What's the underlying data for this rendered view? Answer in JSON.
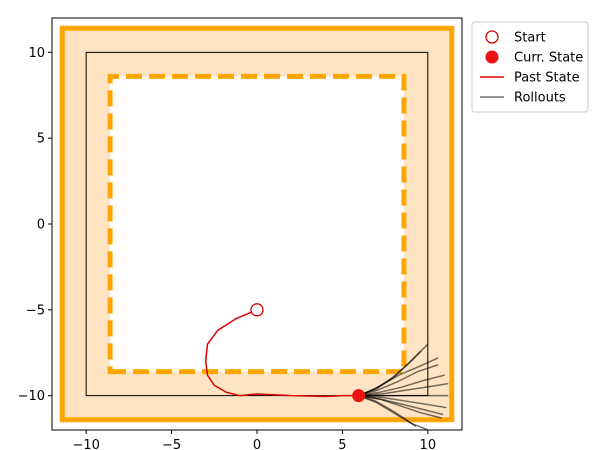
{
  "chart_data": {
    "type": "line",
    "xlim": [
      -12,
      12
    ],
    "ylim": [
      -12,
      12
    ],
    "xticks": [
      -10,
      -5,
      0,
      5,
      10
    ],
    "yticks": [
      -10,
      -5,
      0,
      5,
      10
    ],
    "xtick_labels": [
      "−10",
      "−5",
      "0",
      "5",
      "10"
    ],
    "ytick_labels": [
      "−10",
      "−5",
      "0",
      "5",
      "10"
    ],
    "grid": false,
    "legend_position": "outside-top-right",
    "colors": {
      "band_fill": "#ffe4c4",
      "boundary": "#ffa500",
      "reference": "#000000",
      "past_state": "#dd0000",
      "rollouts": "#000000",
      "marker": "#ee1111"
    },
    "regions": {
      "outer_boundary": [
        [
          -11.4,
          -11.4
        ],
        [
          11.4,
          -11.4
        ],
        [
          11.4,
          11.4
        ],
        [
          -11.4,
          11.4
        ]
      ],
      "inner_boundary": [
        [
          -8.6,
          -8.6
        ],
        [
          8.6,
          -8.6
        ],
        [
          8.6,
          8.6
        ],
        [
          -8.6,
          8.6
        ]
      ],
      "reference_square": [
        [
          -10,
          -10
        ],
        [
          10,
          -10
        ],
        [
          10,
          10
        ],
        [
          -10,
          10
        ]
      ]
    },
    "start": {
      "x": 0,
      "y": -5
    },
    "current_state": {
      "x": 5.95,
      "y": -10
    },
    "past_state": {
      "x": [
        0,
        -1.2,
        -2.3,
        -2.9,
        -3.0,
        -2.9,
        -2.5,
        -1.8,
        -1.0,
        0,
        1.0,
        2.0,
        3.0,
        4.0,
        5.0,
        5.95
      ],
      "y": [
        -5,
        -5.5,
        -6.2,
        -7.0,
        -8.0,
        -8.8,
        -9.4,
        -9.8,
        -10.0,
        -9.9,
        -9.95,
        -10.0,
        -10.02,
        -10.05,
        -10.0,
        -10.0
      ]
    },
    "rollouts": [
      {
        "x": [
          5.95,
          7.0,
          8.0,
          9.0,
          10.0
        ],
        "y": [
          -10,
          -9.6,
          -8.9,
          -8.0,
          -7.0
        ]
      },
      {
        "x": [
          5.95,
          7.0,
          8.2,
          9.4,
          10.6
        ],
        "y": [
          -10,
          -9.7,
          -9.2,
          -8.6,
          -8.2
        ]
      },
      {
        "x": [
          5.95,
          7.2,
          8.5,
          9.8,
          11.0
        ],
        "y": [
          -10,
          -9.8,
          -9.5,
          -9.1,
          -8.8
        ]
      },
      {
        "x": [
          5.95,
          7.3,
          8.6,
          9.9,
          11.2
        ],
        "y": [
          -10,
          -9.9,
          -9.7,
          -9.5,
          -9.3
        ]
      },
      {
        "x": [
          5.95,
          7.3,
          8.6,
          9.9,
          11.2
        ],
        "y": [
          -10,
          -10.0,
          -10.0,
          -10.0,
          -10.0
        ]
      },
      {
        "x": [
          5.95,
          7.3,
          8.6,
          9.9,
          11.1
        ],
        "y": [
          -10,
          -10.1,
          -10.3,
          -10.5,
          -10.7
        ]
      },
      {
        "x": [
          5.95,
          7.2,
          8.4,
          9.6,
          10.8
        ],
        "y": [
          -10,
          -10.2,
          -10.6,
          -11.0,
          -11.3
        ]
      },
      {
        "x": [
          5.95,
          7.0,
          8.0,
          9.0,
          10.0
        ],
        "y": [
          -10,
          -10.4,
          -11.0,
          -11.6,
          -12.0
        ]
      },
      {
        "x": [
          5.95,
          6.9,
          7.8,
          8.6,
          9.3
        ],
        "y": [
          -10,
          -10.3,
          -10.8,
          -11.3,
          -11.8
        ]
      },
      {
        "x": [
          5.95,
          6.9,
          7.9,
          8.8,
          9.6
        ],
        "y": [
          -10,
          -9.6,
          -9.0,
          -8.2,
          -7.4
        ]
      },
      {
        "x": [
          5.95,
          7.1,
          8.3,
          9.5,
          10.6
        ],
        "y": [
          -10,
          -9.5,
          -8.8,
          -8.3,
          -7.8
        ]
      },
      {
        "x": [
          5.95,
          7.2,
          8.5,
          9.7,
          10.9
        ],
        "y": [
          -10,
          -10.2,
          -10.5,
          -10.8,
          -11.1
        ]
      }
    ],
    "legend": [
      {
        "label": "Start",
        "kind": "open-circle"
      },
      {
        "label": "Curr. State",
        "kind": "filled-circle"
      },
      {
        "label": "Past State",
        "kind": "red-line"
      },
      {
        "label": "Rollouts",
        "kind": "gray-line"
      }
    ]
  }
}
